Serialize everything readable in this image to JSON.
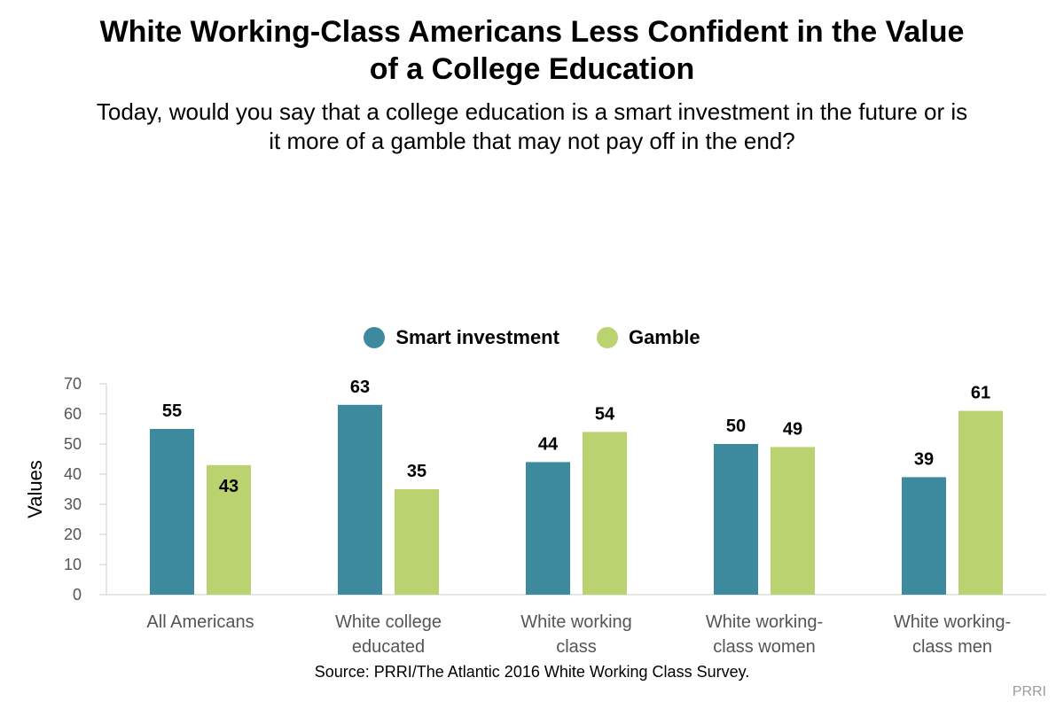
{
  "title_line1": "White Working-Class Americans Less Confident in the Value",
  "title_line2": "of a College Education",
  "subtitle_line1": "Today, would you say that a college education is a smart investment in the future or is",
  "subtitle_line2": "it more of a gamble that may not pay off in the end?",
  "source": "Source: PRRI/The Atlantic 2016 White Working Class Survey.",
  "brand": "PRRI",
  "colors": {
    "smart": "#3d8a9e",
    "gamble": "#bbd270"
  },
  "chart_data": {
    "type": "bar",
    "ylabel": "Values",
    "ylim": [
      0,
      70
    ],
    "yticks": [
      0,
      10,
      20,
      30,
      40,
      50,
      60,
      70
    ],
    "categories": [
      [
        "All Americans"
      ],
      [
        "White college",
        "educated"
      ],
      [
        "White working",
        "class"
      ],
      [
        "White working-",
        "class women"
      ],
      [
        "White working-",
        "class men"
      ]
    ],
    "series": [
      {
        "name": "Smart investment",
        "values": [
          55,
          63,
          44,
          50,
          39
        ]
      },
      {
        "name": "Gamble",
        "values": [
          43,
          35,
          54,
          49,
          61
        ]
      }
    ],
    "inside_labels": {
      "0_1": true,
      "1_4": true
    }
  }
}
